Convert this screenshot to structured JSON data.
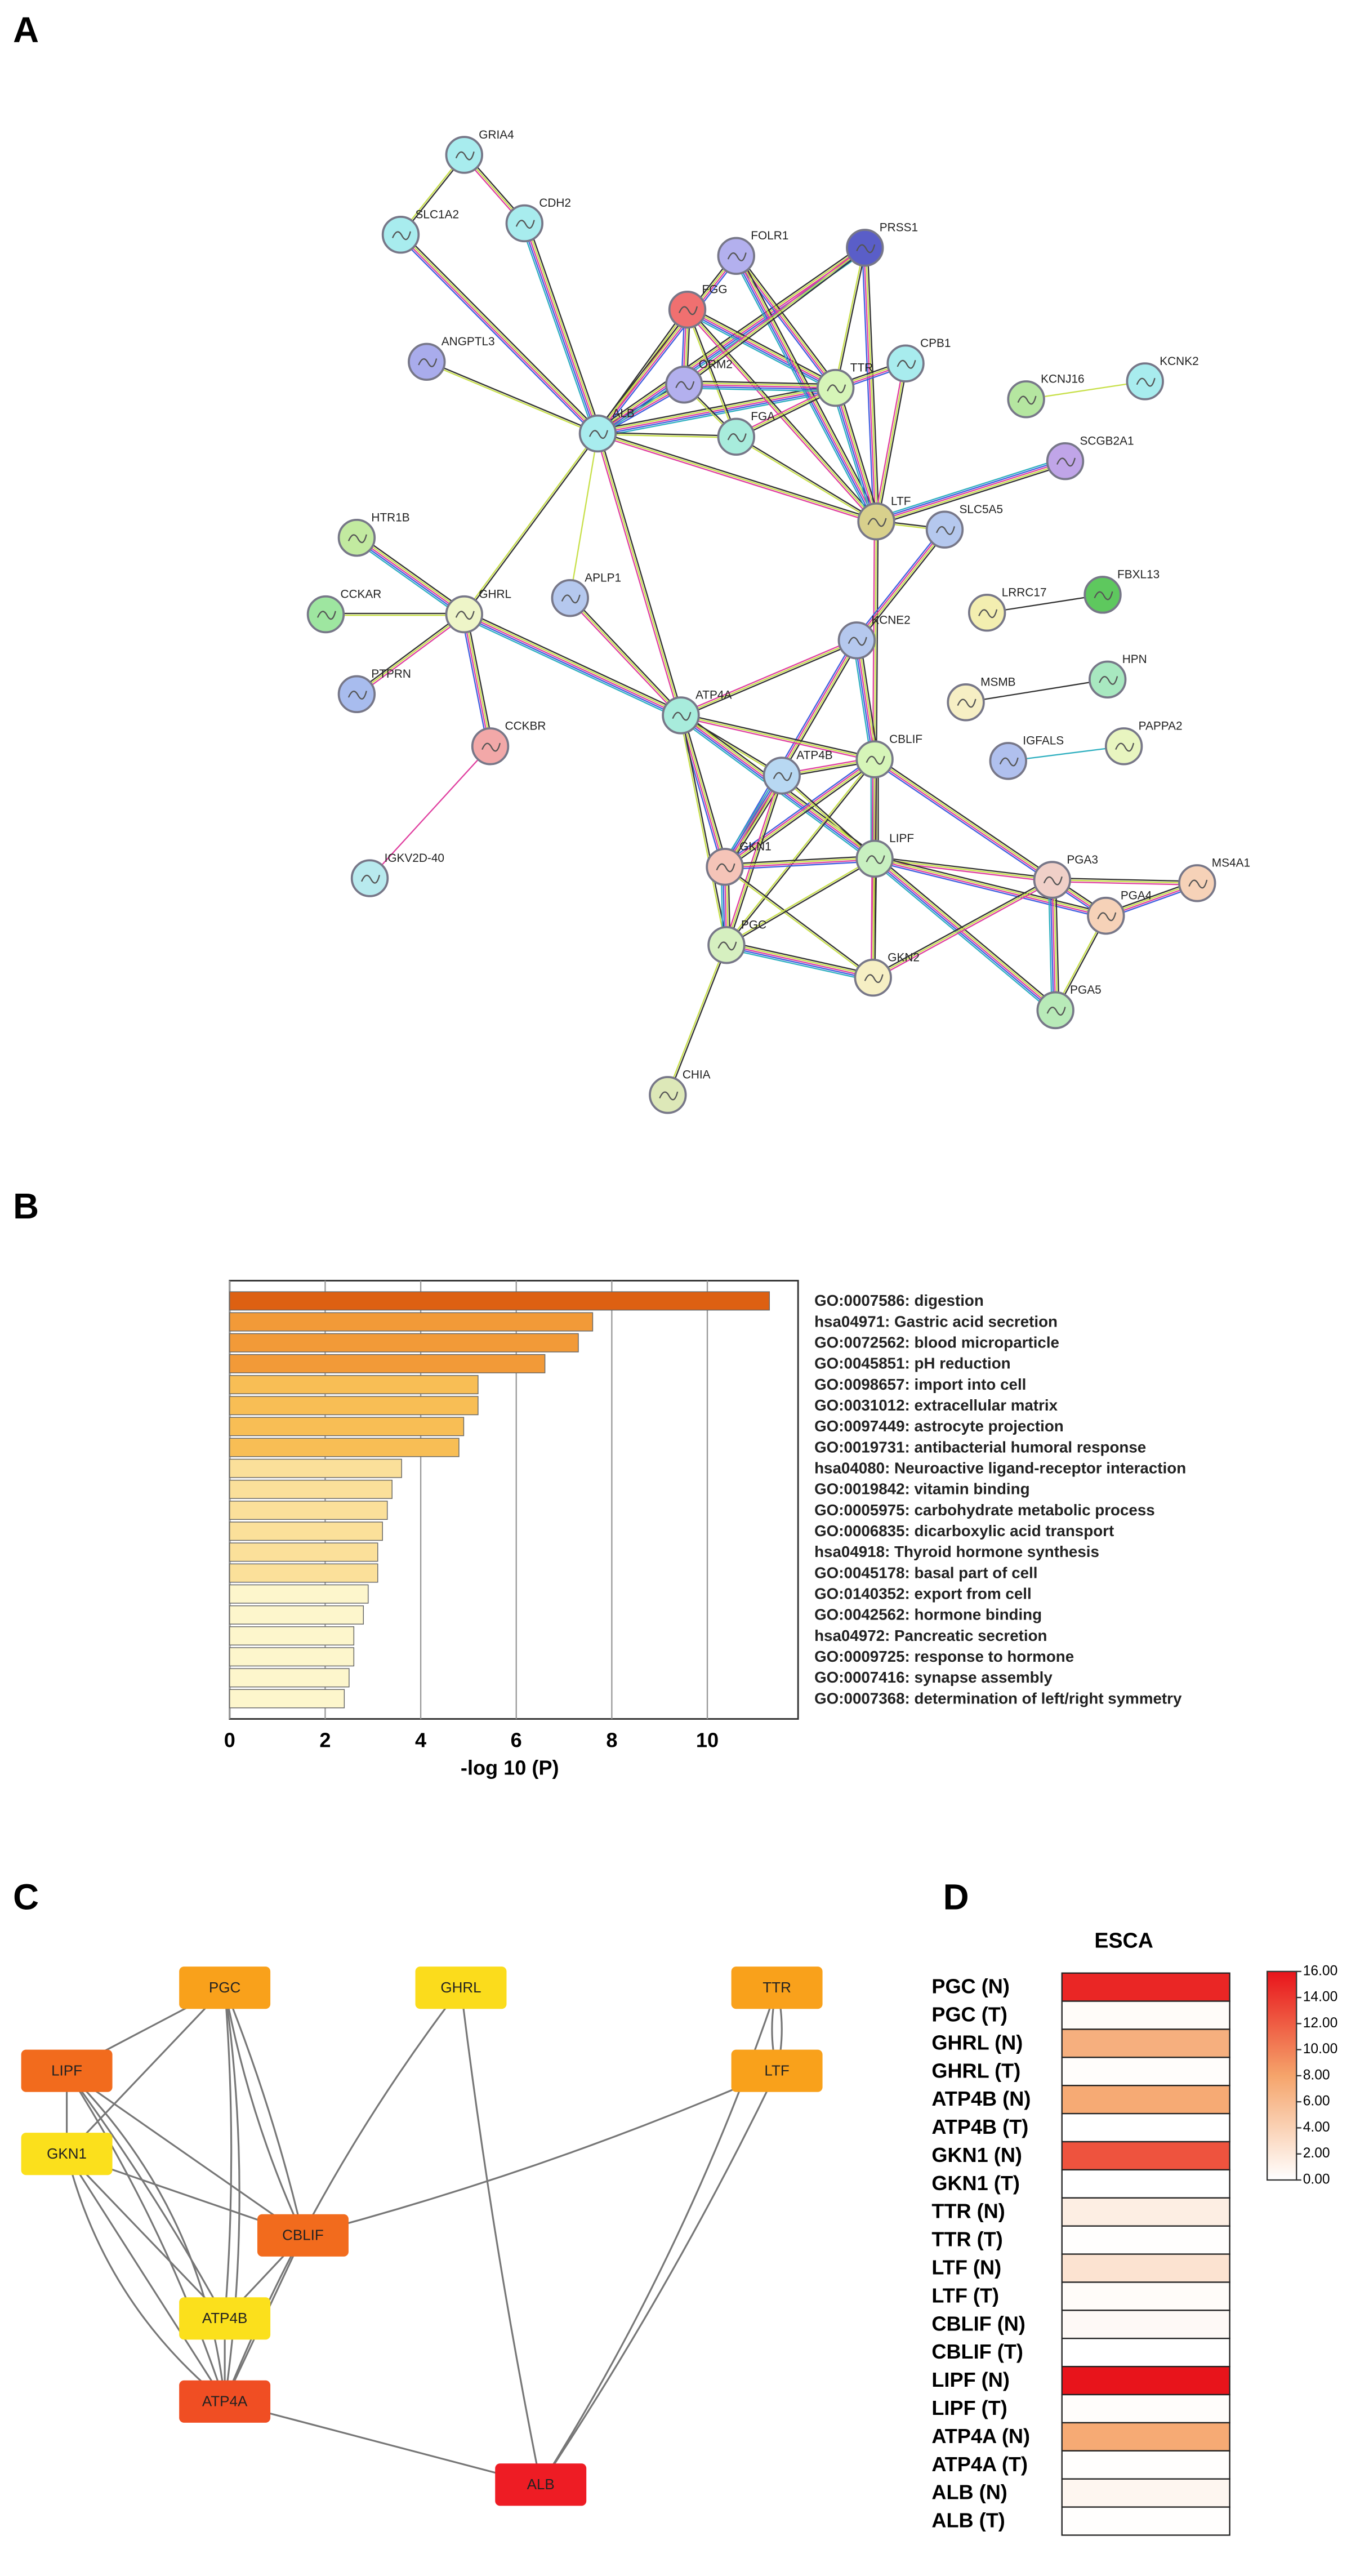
{
  "panel_labels": [
    "A",
    "B",
    "C",
    "D"
  ],
  "network_a": {
    "nodes": [
      {
        "label": "GRIA4",
        "color": "#a8ecee"
      },
      {
        "label": "SLC1A2",
        "color": "#a8ecee"
      },
      {
        "label": "CDH2",
        "color": "#a8ecee"
      },
      {
        "label": "ANGPTL3",
        "color": "#a9acec"
      },
      {
        "label": "ALB",
        "color": "#a8ecee"
      },
      {
        "label": "FOLR1",
        "color": "#b3b0ee"
      },
      {
        "label": "PRSS1",
        "color": "#5a5ec8"
      },
      {
        "label": "FGG",
        "color": "#f07070"
      },
      {
        "label": "ORM2",
        "color": "#b3b0ee"
      },
      {
        "label": "TTR",
        "color": "#d6f5b8"
      },
      {
        "label": "FGA",
        "color": "#a8ecdc"
      },
      {
        "label": "CPB1",
        "color": "#a8ecee"
      },
      {
        "label": "KCNJ16",
        "color": "#b5e6a0"
      },
      {
        "label": "KCNK2",
        "color": "#a8ecee"
      },
      {
        "label": "SCGB2A1",
        "color": "#c0a5e8"
      },
      {
        "label": "LTF",
        "color": "#d8d08c"
      },
      {
        "label": "SLC5A5",
        "color": "#b5c8ee"
      },
      {
        "label": "HTR1B",
        "color": "#c2eaa0"
      },
      {
        "label": "CCKAR",
        "color": "#9ee6a0"
      },
      {
        "label": "GHRL",
        "color": "#eef5c8"
      },
      {
        "label": "PTPRN",
        "color": "#a8bcee"
      },
      {
        "label": "APLP1",
        "color": "#b5c8ee"
      },
      {
        "label": "LRRC17",
        "color": "#f3eeb0"
      },
      {
        "label": "FBXL13",
        "color": "#5ec85e"
      },
      {
        "label": "KCNE2",
        "color": "#b5c8ee"
      },
      {
        "label": "MSMB",
        "color": "#f6efc4"
      },
      {
        "label": "HPN",
        "color": "#a8e8c0"
      },
      {
        "label": "ATP4A",
        "color": "#a8ecdc"
      },
      {
        "label": "CCKBR",
        "color": "#f2a8a8"
      },
      {
        "label": "IGFALS",
        "color": "#b0c0ee"
      },
      {
        "label": "PAPPA2",
        "color": "#e8f5c0"
      },
      {
        "label": "CBLIF",
        "color": "#d6f5b8"
      },
      {
        "label": "ATP4B",
        "color": "#b8d8f2"
      },
      {
        "label": "GKN1",
        "color": "#f5c4b8"
      },
      {
        "label": "LIPF",
        "color": "#c8f0c0"
      },
      {
        "label": "PGA3",
        "color": "#f0d0c8"
      },
      {
        "label": "MS4A1",
        "color": "#f6d2b8"
      },
      {
        "label": "PGA4",
        "color": "#f6d2b8"
      },
      {
        "label": "IGKV2D-40",
        "color": "#b8eaee"
      },
      {
        "label": "PGC",
        "color": "#d6f0c0"
      },
      {
        "label": "GKN2",
        "color": "#f6efc4"
      },
      {
        "label": "PGA5",
        "color": "#b8eab8"
      },
      {
        "label": "CHIA",
        "color": "#dde8b8"
      }
    ]
  },
  "chart_data": [
    {
      "type": "bar",
      "orientation": "horizontal",
      "categories": [
        "GO:0007586: digestion",
        "hsa04971: Gastric acid secretion",
        "GO:0072562: blood microparticle",
        "GO:0045851: pH reduction",
        "GO:0098657: import into cell",
        "GO:0031012: extracellular matrix",
        "GO:0097449: astrocyte projection",
        "GO:0019731: antibacterial humoral response",
        "hsa04080: Neuroactive ligand-receptor interaction",
        "GO:0019842: vitamin binding",
        "GO:0005975: carbohydrate metabolic process",
        "GO:0006835: dicarboxylic acid transport",
        "hsa04918: Thyroid hormone synthesis",
        "GO:0045178: basal part of cell",
        "GO:0140352: export from cell",
        "GO:0042562: hormone binding",
        "hsa04972: Pancreatic secretion",
        "GO:0009725: response to hormone",
        "GO:0007416: synapse assembly",
        "GO:0007368: determination of left/right symmetry"
      ],
      "values": [
        11.3,
        7.6,
        7.3,
        6.6,
        5.2,
        5.2,
        4.9,
        4.8,
        3.6,
        3.4,
        3.3,
        3.2,
        3.1,
        3.1,
        2.9,
        2.8,
        2.6,
        2.6,
        2.5,
        2.4
      ],
      "colors": [
        "#dd6012",
        "#f29a38",
        "#f29a38",
        "#f29a38",
        "#f8be55",
        "#f8be55",
        "#f8be55",
        "#f8be55",
        "#fbe09a",
        "#fbe09a",
        "#fbe09a",
        "#fbe09a",
        "#fbe09a",
        "#fbe09a",
        "#fdf6cc",
        "#fdf6cc",
        "#fdf6cc",
        "#fdf6cc",
        "#fdf6cc",
        "#fdf6cc"
      ],
      "xlim": [
        0,
        11.9
      ],
      "xticks": [
        0,
        2,
        4,
        6,
        8,
        10
      ],
      "xlabel": "-log 10 (P)",
      "grid": true
    },
    {
      "type": "heatmap",
      "title": "ESCA",
      "categories": [
        "PGC (N)",
        "PGC (T)",
        "GHRL (N)",
        "GHRL (T)",
        "ATP4B (N)",
        "ATP4B (T)",
        "GKN1 (N)",
        "GKN1 (T)",
        "TTR (N)",
        "TTR (T)",
        "LTF (N)",
        "LTF (T)",
        "CBLIF (N)",
        "CBLIF (T)",
        "LIPF (N)",
        "LIPF (T)",
        "ATP4A (N)",
        "ATP4A (T)",
        "ALB (N)",
        "ALB (T)"
      ],
      "values": [
        15,
        0.3,
        7,
        0.2,
        7.5,
        0,
        12.5,
        0,
        1.5,
        0.1,
        2.5,
        0.3,
        0.5,
        0,
        16,
        0.2,
        7.5,
        0.1,
        0.8,
        0.1
      ],
      "clim": [
        0,
        16
      ],
      "cticks": [
        {
          "value": 0,
          "label": "0.00"
        },
        {
          "value": 2,
          "label": "2.00"
        },
        {
          "value": 4,
          "label": "4.00"
        },
        {
          "value": 6,
          "label": "6.00"
        },
        {
          "value": 8,
          "label": "8.00"
        },
        {
          "value": 10,
          "label": "10.00"
        },
        {
          "value": 12,
          "label": "12.00"
        },
        {
          "value": 14,
          "label": "14.00"
        },
        {
          "value": 16,
          "label": "16.00"
        }
      ],
      "colors": [
        "#ffffff",
        "#f5a46b",
        "#e8141b"
      ]
    }
  ],
  "network_c": {
    "nodes": [
      {
        "label": "PGC",
        "color": "#f9a11b"
      },
      {
        "label": "GHRL",
        "color": "#fbdc1c"
      },
      {
        "label": "TTR",
        "color": "#f9a11b"
      },
      {
        "label": "LIPF",
        "color": "#f26b1d"
      },
      {
        "label": "LTF",
        "color": "#f9a11b"
      },
      {
        "label": "GKN1",
        "color": "#fbe01c"
      },
      {
        "label": "CBLIF",
        "color": "#f26b1d"
      },
      {
        "label": "ATP4B",
        "color": "#fbe01c"
      },
      {
        "label": "ATP4A",
        "color": "#f04e23"
      },
      {
        "label": "ALB",
        "color": "#ee1c24"
      }
    ]
  }
}
